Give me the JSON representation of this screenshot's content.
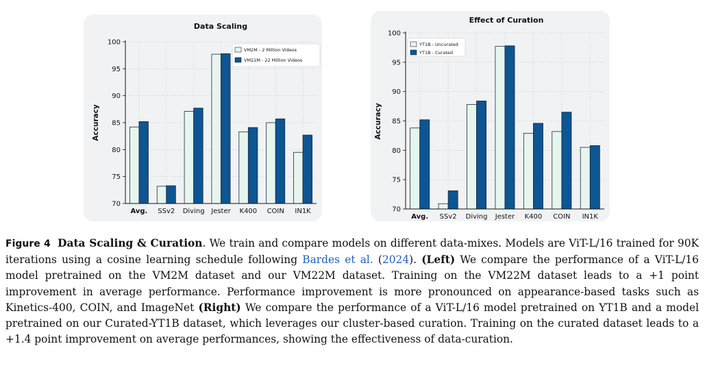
{
  "colors": {
    "light_bar": "#e6f5ee",
    "dark_bar": "#0d5593",
    "panel_bg": "#f1f2f4",
    "cite": "#1f5fbf"
  },
  "chart_data": [
    {
      "type": "bar",
      "title": "Data Scaling",
      "ylabel": "Accuracy",
      "ylim": [
        70,
        100
      ],
      "yticks": [
        70,
        75,
        80,
        85,
        90,
        95,
        100
      ],
      "categories": [
        "Avg.",
        "SSv2",
        "Diving",
        "Jester",
        "K400",
        "COIN",
        "IN1K"
      ],
      "bold_categories": [
        "Avg."
      ],
      "series": [
        {
          "name": "VM2M - 2 Million Videos",
          "color": "#e6f5ee",
          "values": [
            84.2,
            73.2,
            87.1,
            97.7,
            83.3,
            85.0,
            79.5
          ]
        },
        {
          "name": "VM22M - 22 Million Videos",
          "color": "#0d5593",
          "values": [
            85.2,
            73.3,
            87.7,
            97.8,
            84.1,
            85.7,
            82.7
          ]
        }
      ],
      "grid": true,
      "legend_position": "top-right"
    },
    {
      "type": "bar",
      "title": "Effect of Curation",
      "ylabel": "Accuracy",
      "ylim": [
        70,
        100
      ],
      "yticks": [
        70,
        75,
        80,
        85,
        90,
        95,
        100
      ],
      "categories": [
        "Avg.",
        "SSv2",
        "Diving",
        "Jester",
        "K400",
        "COIN",
        "IN1K"
      ],
      "bold_categories": [
        "Avg."
      ],
      "series": [
        {
          "name": "YT1B - Uncurated",
          "color": "#e6f5ee",
          "values": [
            83.8,
            70.9,
            87.8,
            97.7,
            82.9,
            83.2,
            80.5
          ]
        },
        {
          "name": "YT1B - Curated",
          "color": "#0d5593",
          "values": [
            85.2,
            73.1,
            88.4,
            97.8,
            84.6,
            86.5,
            80.8
          ]
        }
      ],
      "grid": true,
      "legend_position": "top-left"
    }
  ],
  "caption": {
    "label": "Figure 4",
    "title": "Data Scaling & Curation",
    "t1": ". We train and compare models on different data-mixes. Models are ViT-L/16 trained for 90K iterations using a cosine learning schedule following ",
    "cite_author": "Bardes et al.",
    "cite_open": " (",
    "cite_year": "2024",
    "cite_close": ").",
    "left_label": "(Left)",
    "t2": " We compare the performance of a ViT-L/16 model pretrained on the VM2M dataset and our VM22M dataset. Training on the VM22M dataset leads to a +1 point improvement in average performance. Performance improvement is more pronounced on appearance-based tasks such as Kinetics-400, COIN, and ImageNet ",
    "right_label": "(Right)",
    "t3": " We compare the performance of a ViT-L/16 model pretrained on YT1B and a model pretrained on our Curated-YT1B dataset, which leverages our cluster-based curation. Training on the curated dataset leads to a +1.4 point improvement on average performances, showing the effectiveness of data-curation."
  }
}
